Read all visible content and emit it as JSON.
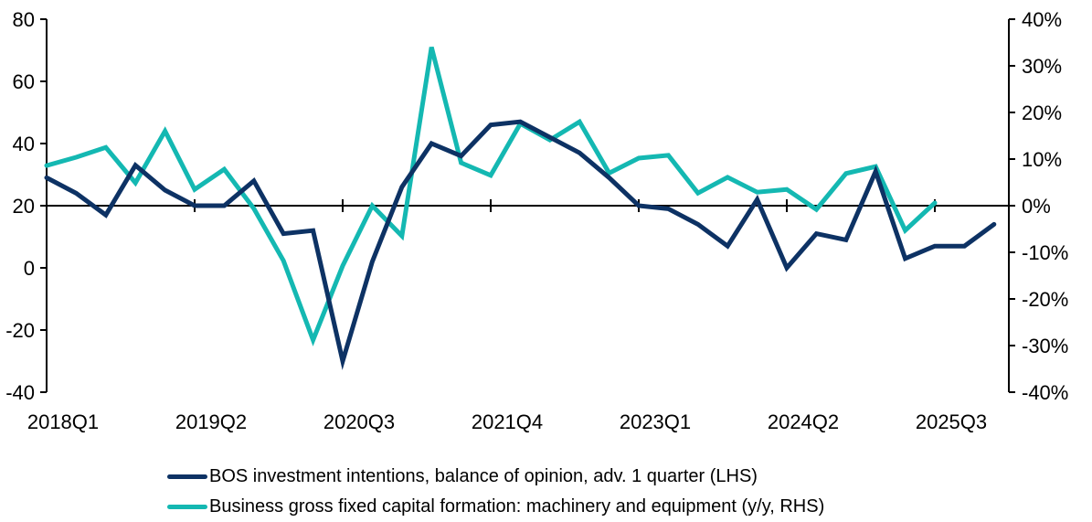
{
  "chart_data": {
    "type": "line",
    "title": "",
    "x": [
      "2018Q1",
      "2018Q2",
      "2018Q3",
      "2018Q4",
      "2019Q1",
      "2019Q2",
      "2019Q3",
      "2019Q4",
      "2020Q1",
      "2020Q2",
      "2020Q3",
      "2020Q4",
      "2021Q1",
      "2021Q2",
      "2021Q3",
      "2021Q4",
      "2022Q1",
      "2022Q2",
      "2022Q3",
      "2022Q4",
      "2023Q1",
      "2023Q2",
      "2023Q3",
      "2023Q4",
      "2024Q1",
      "2024Q2",
      "2024Q3",
      "2024Q4",
      "2025Q1",
      "2025Q2",
      "2025Q3",
      "2025Q4",
      "2026Q1"
    ],
    "x_tick_labels": [
      "2018Q1",
      "2019Q2",
      "2020Q3",
      "2021Q4",
      "2023Q1",
      "2024Q2",
      "2025Q3"
    ],
    "left_axis": {
      "ylim": [
        -40,
        80
      ],
      "ticks": [
        -40,
        -20,
        0,
        20,
        40,
        60,
        80
      ],
      "tick_labels": [
        "-40",
        "-20",
        "0",
        "20",
        "40",
        "60",
        "80"
      ],
      "x_axis_crosses_at": 20
    },
    "right_axis": {
      "ylim": [
        -40,
        40
      ],
      "ticks": [
        -40,
        -30,
        -20,
        -10,
        0,
        10,
        20,
        30,
        40
      ],
      "tick_labels": [
        "-40%",
        "-30%",
        "-20%",
        "-10%",
        "0%",
        "10%",
        "20%",
        "30%",
        "40%"
      ]
    },
    "series": [
      {
        "name": "BOS investment intentions, balance of opinion, adv. 1 quarter (LHS)",
        "axis": "left",
        "color": "#0d3264",
        "values": [
          29,
          24,
          17,
          33,
          25,
          20,
          20,
          28,
          11,
          12,
          -30,
          2,
          26,
          40,
          36,
          46,
          47,
          42,
          37,
          29,
          20,
          19,
          14,
          7,
          22,
          0,
          11,
          9,
          31,
          3,
          7,
          7,
          14
        ]
      },
      {
        "name": "Business gross fixed capital formation: machinery and equipment (y/y, RHS)",
        "axis": "right",
        "color": "#14b8b2",
        "values": [
          8.6,
          10.4,
          12.5,
          4.9,
          16,
          3.5,
          7.8,
          -0.6,
          -11.8,
          -28.8,
          -12.9,
          0,
          -6.5,
          34,
          9.2,
          6.5,
          17.6,
          14.1,
          18,
          7,
          10.2,
          10.8,
          2.7,
          6.1,
          2.9,
          3.5,
          -0.8,
          6.9,
          8.4,
          -5.3,
          0.6,
          null,
          null
        ]
      }
    ],
    "grid": false,
    "legend_position": "bottom",
    "xlabel": "",
    "ylabel": ""
  }
}
